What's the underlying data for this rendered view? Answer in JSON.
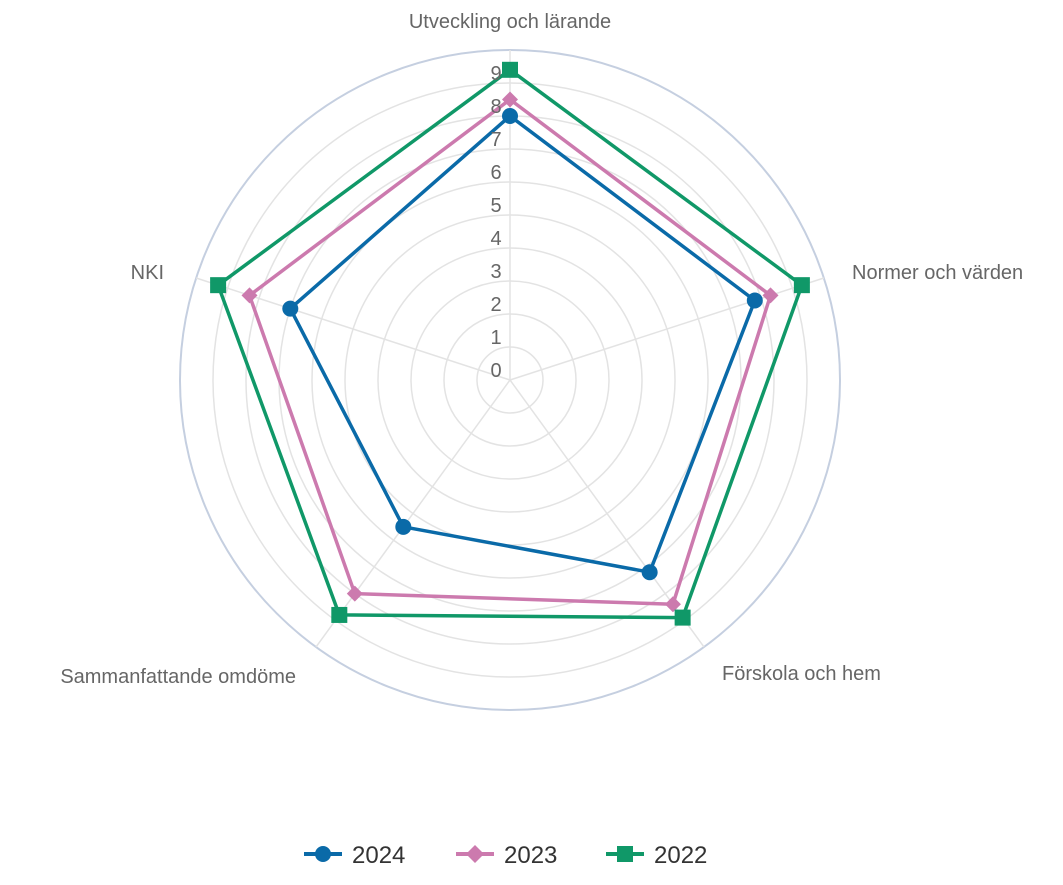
{
  "chart_data": {
    "type": "radar",
    "axes": [
      "Utveckling och lärande",
      "Normer och värden",
      "Förskola och hem",
      "Sammanfattande omdöme",
      "NKI"
    ],
    "r_ticks": [
      "0",
      "1",
      "2",
      "3",
      "4",
      "5",
      "6",
      "7",
      "8",
      "9"
    ],
    "rlim": [
      0,
      10
    ],
    "grid": true,
    "legend_position": "bottom",
    "series": [
      {
        "name": "2024",
        "values": [
          8.0,
          7.8,
          7.2,
          5.5,
          7.0
        ],
        "color": "#0a6aa8",
        "marker": "circle"
      },
      {
        "name": "2023",
        "values": [
          8.5,
          8.3,
          8.4,
          8.0,
          8.3
        ],
        "color": "#cc7aae",
        "marker": "diamond"
      },
      {
        "name": "2022",
        "values": [
          9.4,
          9.3,
          8.9,
          8.8,
          9.3
        ],
        "color": "#109868",
        "marker": "square"
      }
    ]
  }
}
